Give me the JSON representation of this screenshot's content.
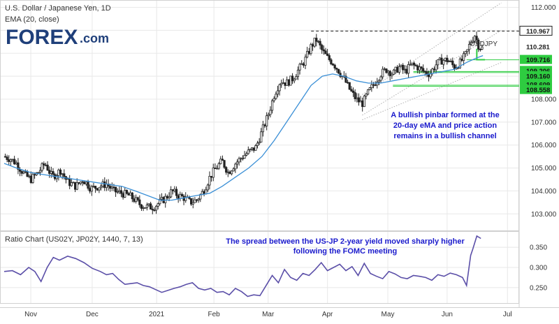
{
  "header": {
    "title": "U.S. Dollar / Japanese Yen, 1D",
    "indicator": "EMA (20, close)"
  },
  "logo": {
    "brand": "FOREX",
    "suffix": ".com"
  },
  "colors": {
    "candle": "#222222",
    "ema": "#3a8fd6",
    "ratio_line": "#5b4fa8",
    "green": "#2ecc40",
    "annotation": "#1a1acc",
    "channel": "#b0b0b0",
    "grid": "#e8e8e8"
  },
  "symbol_label": "USDJPY",
  "annotations": {
    "price_note": [
      "A bullish pinbar formed at the",
      "20-day eMA and price action",
      "remains in a bullish channel"
    ],
    "ratio_note": [
      "The spread between the US-JP 2-year yield moved sharply higher",
      "following the FOMC meeting"
    ]
  },
  "lower_panel": {
    "title": "Ratio Chart (US02Y, JP02Y, 1440, 7, 13)"
  },
  "chart_data": [
    {
      "type": "candlestick",
      "title": "U.S. Dollar / Japanese Yen, 1D",
      "ylim": [
        102.4,
        112.2
      ],
      "y_ticks": [
        103.0,
        104.0,
        105.0,
        106.0,
        107.0,
        108.0,
        109.0,
        110.0,
        111.0,
        112.0
      ],
      "x_ticks": [
        "Nov",
        "Dec",
        "2021",
        "Feb",
        "Mar",
        "Apr",
        "May",
        "Jun",
        "Jul"
      ],
      "x_tick_days": [
        26,
        86,
        149,
        205,
        258,
        316,
        375,
        433,
        492
      ],
      "price_series": {
        "name": "USDJPY",
        "days": [
          0,
          6,
          12,
          20,
          26,
          33,
          40,
          47,
          55,
          62,
          70,
          77,
          85,
          92,
          100,
          107,
          115,
          122,
          128,
          133,
          140,
          146,
          152,
          158,
          164,
          170,
          176,
          182,
          188,
          195,
          201,
          207,
          213,
          219,
          226,
          233,
          239,
          246,
          252,
          258,
          264,
          270,
          276,
          282,
          288,
          294,
          300,
          305,
          311,
          316,
          321,
          326,
          332,
          338,
          344,
          350,
          356,
          362,
          368,
          374,
          380,
          386,
          392,
          398,
          404,
          410,
          416,
          422,
          428,
          434,
          440,
          446,
          452,
          456,
          460,
          464,
          468
        ],
        "values": [
          105.5,
          105.4,
          105.2,
          104.7,
          104.5,
          104.8,
          105.2,
          104.6,
          104.9,
          104.4,
          104.2,
          104.5,
          104.1,
          104.2,
          104.3,
          104.0,
          103.9,
          103.8,
          103.6,
          103.4,
          103.3,
          103.3,
          103.5,
          103.7,
          104.0,
          103.8,
          103.7,
          103.5,
          103.6,
          104.0,
          104.6,
          105.0,
          105.3,
          104.8,
          105.2,
          105.5,
          105.7,
          105.9,
          106.6,
          107.3,
          108.2,
          108.8,
          108.7,
          108.9,
          109.3,
          109.7,
          110.3,
          110.6,
          110.1,
          109.8,
          109.6,
          109.3,
          108.9,
          108.4,
          108.0,
          107.8,
          108.3,
          108.7,
          109.1,
          109.3,
          109.1,
          109.4,
          109.2,
          109.5,
          109.4,
          109.2,
          109.1,
          109.5,
          109.7,
          109.7,
          109.4,
          109.6,
          110.0,
          110.5,
          110.8,
          110.3,
          110.2
        ]
      },
      "ema_series": {
        "name": "EMA (20, close)",
        "days": [
          0,
          12,
          26,
          40,
          55,
          70,
          85,
          100,
          115,
          128,
          140,
          152,
          164,
          176,
          188,
          201,
          213,
          226,
          239,
          252,
          264,
          276,
          288,
          300,
          311,
          321,
          332,
          344,
          356,
          368,
          380,
          392,
          404,
          416,
          428,
          440,
          452,
          462,
          468
        ],
        "values": [
          105.2,
          105.0,
          104.8,
          104.7,
          104.6,
          104.5,
          104.4,
          104.3,
          104.2,
          104.0,
          103.8,
          103.6,
          103.6,
          103.7,
          103.8,
          103.9,
          104.2,
          104.6,
          105.0,
          105.5,
          106.2,
          107.0,
          107.8,
          108.6,
          109.0,
          109.1,
          109.0,
          108.8,
          108.7,
          108.7,
          108.8,
          108.9,
          109.0,
          109.1,
          109.2,
          109.3,
          109.6,
          109.8,
          109.9
        ]
      },
      "levels": [
        {
          "label": "110.967",
          "value": 110.967,
          "style": "dashed",
          "color": "#222222"
        },
        {
          "label": "110.281",
          "value": 110.281,
          "style": "none",
          "color": "#222222"
        },
        {
          "label": "109.716",
          "value": 109.716,
          "style": "solid",
          "color": "#2ecc40"
        },
        {
          "label": "109.206",
          "value": 109.206,
          "style": "solid",
          "color": "#2ecc40"
        },
        {
          "label": "109.160",
          "value": 109.16,
          "style": "solid",
          "color": "#2ecc40"
        },
        {
          "label": "108.609",
          "value": 108.609,
          "style": "solid",
          "color": "#2ecc40"
        },
        {
          "label": "108.558",
          "value": 108.558,
          "style": "solid",
          "color": "#2ecc40"
        }
      ]
    },
    {
      "type": "line",
      "title": "Ratio Chart (US02Y, JP02Y, 1440, 7, 13)",
      "ylim": [
        0.215,
        0.385
      ],
      "y_ticks": [
        0.25,
        0.3,
        0.35
      ],
      "y_tick_labels": [
        "0.250",
        "0.300",
        "0.350"
      ],
      "series": [
        {
          "name": "",
          "days": [
            0,
            8,
            16,
            24,
            30,
            36,
            42,
            48,
            54,
            62,
            70,
            78,
            86,
            94,
            100,
            106,
            112,
            118,
            124,
            130,
            136,
            142,
            148,
            154,
            160,
            166,
            172,
            178,
            184,
            190,
            196,
            202,
            208,
            214,
            220,
            226,
            232,
            238,
            244,
            250,
            256,
            262,
            268,
            274,
            280,
            286,
            292,
            298,
            304,
            310,
            316,
            322,
            328,
            334,
            340,
            346,
            352,
            358,
            364,
            370,
            376,
            382,
            388,
            394,
            400,
            406,
            412,
            418,
            424,
            430,
            436,
            442,
            448,
            452,
            456,
            458,
            462,
            466
          ],
          "values": [
            0.29,
            0.292,
            0.282,
            0.3,
            0.29,
            0.265,
            0.3,
            0.325,
            0.318,
            0.328,
            0.322,
            0.312,
            0.298,
            0.29,
            0.282,
            0.285,
            0.27,
            0.258,
            0.26,
            0.262,
            0.255,
            0.252,
            0.245,
            0.238,
            0.243,
            0.248,
            0.252,
            0.258,
            0.262,
            0.248,
            0.244,
            0.248,
            0.238,
            0.24,
            0.232,
            0.248,
            0.24,
            0.228,
            0.232,
            0.23,
            0.255,
            0.28,
            0.262,
            0.295,
            0.275,
            0.268,
            0.285,
            0.28,
            0.295,
            0.312,
            0.292,
            0.3,
            0.308,
            0.292,
            0.302,
            0.28,
            0.31,
            0.285,
            0.278,
            0.272,
            0.29,
            0.284,
            0.275,
            0.272,
            0.28,
            0.278,
            0.275,
            0.268,
            0.282,
            0.278,
            0.286,
            0.282,
            0.275,
            0.255,
            0.33,
            0.345,
            0.378,
            0.372
          ]
        }
      ]
    }
  ]
}
